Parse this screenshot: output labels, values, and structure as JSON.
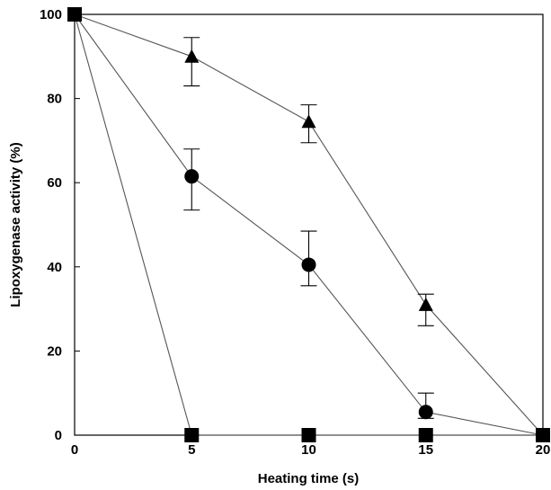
{
  "chart_data": {
    "type": "line",
    "title": "",
    "xlabel": "Heating time (s)",
    "ylabel": "Lipoxygenase activity (%)",
    "xlim": [
      0,
      20
    ],
    "ylim": [
      0,
      100
    ],
    "xticks": [
      0,
      5,
      10,
      15,
      20
    ],
    "yticks": [
      0,
      20,
      40,
      60,
      80,
      100
    ],
    "grid": false,
    "legend": "none",
    "series": [
      {
        "marker": "triangle",
        "color": "#000000",
        "x": [
          0,
          5,
          10,
          15,
          20
        ],
        "y": [
          100,
          90,
          74.5,
          31,
          0
        ],
        "err_low": [
          0,
          7,
          5,
          5,
          0
        ],
        "err_high": [
          0,
          4.5,
          4,
          2.5,
          0
        ]
      },
      {
        "marker": "circle",
        "color": "#000000",
        "x": [
          0,
          5,
          10,
          15,
          20
        ],
        "y": [
          100,
          61.5,
          40.5,
          5.5,
          0
        ],
        "err_low": [
          0,
          8,
          5,
          1.5,
          0
        ],
        "err_high": [
          0,
          6.5,
          8,
          4.5,
          0
        ]
      },
      {
        "marker": "square",
        "color": "#000000",
        "x": [
          0,
          5,
          10,
          15,
          20
        ],
        "y": [
          100,
          0,
          0,
          0,
          0
        ],
        "err_low": [
          0,
          0,
          0,
          0,
          0
        ],
        "err_high": [
          0,
          0,
          0,
          0,
          0
        ]
      }
    ]
  }
}
